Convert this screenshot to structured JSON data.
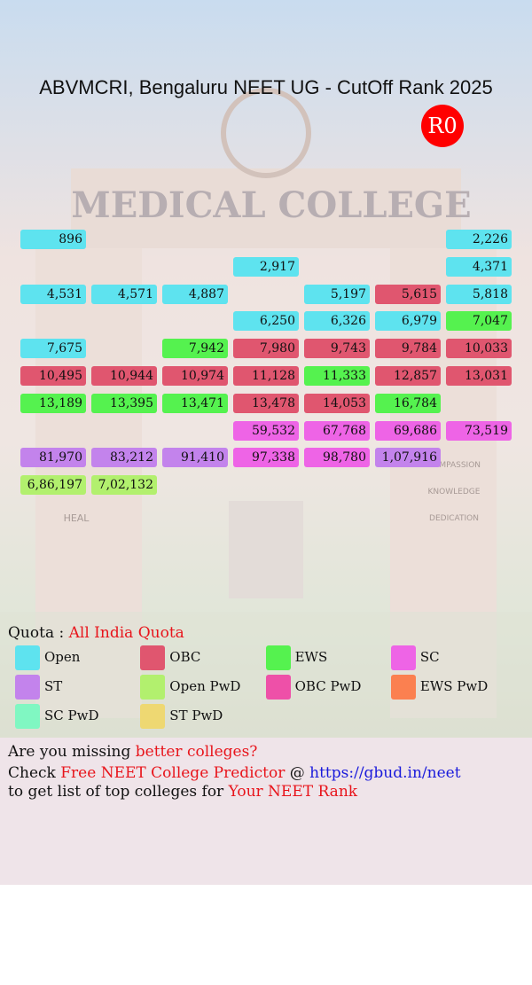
{
  "header": {
    "title": "ABVMCRI, Bengaluru NEET UG - CutOff Rank 2025",
    "round": "R0"
  },
  "background": {
    "sign": "MEDICAL COLLEGE",
    "pillar_left": "HEAL",
    "pillar_right": [
      "COMPASSION",
      "KNOWLEDGE",
      "DEDICATION"
    ]
  },
  "grid": [
    [
      {
        "text": "896",
        "q": 0
      },
      null,
      null,
      null,
      null,
      null,
      {
        "text": "2,226",
        "q": 0
      }
    ],
    [
      null,
      null,
      null,
      {
        "text": "2,917",
        "q": 0
      },
      null,
      null,
      {
        "text": "4,371",
        "q": 0
      }
    ],
    [
      {
        "text": "4,531",
        "q": 0
      },
      {
        "text": "4,571",
        "q": 0
      },
      {
        "text": "4,887",
        "q": 0
      },
      null,
      {
        "text": "5,197",
        "q": 0
      },
      {
        "text": "5,615",
        "q": 1
      },
      {
        "text": "5,818",
        "q": 0
      }
    ],
    [
      null,
      null,
      null,
      {
        "text": "6,250",
        "q": 0
      },
      {
        "text": "6,326",
        "q": 0
      },
      {
        "text": "6,979",
        "q": 0
      },
      {
        "text": "7,047",
        "q": 2
      }
    ],
    [
      {
        "text": "7,675",
        "q": 0
      },
      null,
      {
        "text": "7,942",
        "q": 2
      },
      {
        "text": "7,980",
        "q": 1
      },
      {
        "text": "9,743",
        "q": 1
      },
      {
        "text": "9,784",
        "q": 1
      },
      {
        "text": "10,033",
        "q": 1
      }
    ],
    [
      {
        "text": "10,495",
        "q": 1
      },
      {
        "text": "10,944",
        "q": 1
      },
      {
        "text": "10,974",
        "q": 1
      },
      {
        "text": "11,128",
        "q": 1
      },
      {
        "text": "11,333",
        "q": 2
      },
      {
        "text": "12,857",
        "q": 1
      },
      {
        "text": "13,031",
        "q": 1
      }
    ],
    [
      {
        "text": "13,189",
        "q": 2
      },
      {
        "text": "13,395",
        "q": 2
      },
      {
        "text": "13,471",
        "q": 2
      },
      {
        "text": "13,478",
        "q": 1
      },
      {
        "text": "14,053",
        "q": 1
      },
      {
        "text": "16,784",
        "q": 2
      },
      null
    ],
    [
      null,
      null,
      null,
      {
        "text": "59,532",
        "q": 3
      },
      {
        "text": "67,768",
        "q": 3
      },
      {
        "text": "69,686",
        "q": 3
      },
      {
        "text": "73,519",
        "q": 3
      }
    ],
    [
      {
        "text": "81,970",
        "q": 4
      },
      {
        "text": "83,212",
        "q": 4
      },
      {
        "text": "91,410",
        "q": 4
      },
      {
        "text": "97,338",
        "q": 3
      },
      {
        "text": "98,780",
        "q": 3
      },
      {
        "text": "1,07,916",
        "q": 4
      },
      null
    ],
    [
      {
        "text": "6,86,197",
        "q": 5
      },
      {
        "text": "7,02,132",
        "q": 5
      },
      null,
      null,
      null,
      null,
      null
    ]
  ],
  "quota": {
    "label": "Quota :",
    "value": "All India Quota"
  },
  "legend": [
    {
      "label": "Open",
      "color": "#5ee3ef"
    },
    {
      "label": "OBC",
      "color": "#e0566f"
    },
    {
      "label": "EWS",
      "color": "#55f24f"
    },
    {
      "label": "SC",
      "color": "#ee64e6"
    },
    {
      "label": "ST",
      "color": "#c383ec"
    },
    {
      "label": "Open PwD",
      "color": "#b2f06e"
    },
    {
      "label": "OBC PwD",
      "color": "#ee50a8"
    },
    {
      "label": "EWS PwD",
      "color": "#fb8050"
    },
    {
      "label": "SC PwD",
      "color": "#80f7c2"
    },
    {
      "label": "ST PwD",
      "color": "#eed872"
    }
  ],
  "footer": {
    "line1": [
      "Are you missing",
      "better colleges?"
    ],
    "line2": [
      "Check",
      "Free NEET College Predictor",
      "@",
      "https://gbud.in/neet"
    ],
    "line3": [
      "to get list of top colleges for",
      "Your NEET Rank"
    ]
  }
}
